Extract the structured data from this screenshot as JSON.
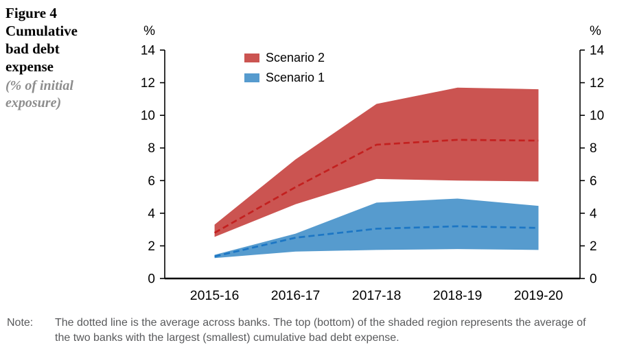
{
  "figure": {
    "label": "Figure 4"
  },
  "note": {
    "label": "Note:",
    "text": "The dotted line is the average across banks. The top (bottom) of the shaded region represents the average of the two banks with the largest (smallest) cumulative bad debt expense."
  },
  "chart_data": {
    "type": "area",
    "title": "Cumulative bad debt expense",
    "subtitle": "(% of initial exposure)",
    "categories": [
      "2015-16",
      "2016-17",
      "2017-18",
      "2018-19",
      "2019-20"
    ],
    "yaxis_unit": "%",
    "ylim": [
      0,
      14
    ],
    "ytick_step": 2,
    "grid": false,
    "legend_position": "top-inside",
    "series": [
      {
        "name": "Scenario 2",
        "band_color": "#cb5451",
        "line_color": "#c3201f",
        "avg": [
          2.8,
          5.6,
          8.2,
          8.5,
          8.45
        ],
        "upper": [
          3.3,
          7.3,
          10.7,
          11.7,
          11.6
        ],
        "lower": [
          2.55,
          4.55,
          6.1,
          6.0,
          5.95
        ]
      },
      {
        "name": "Scenario 1",
        "band_color": "#569bce",
        "line_color": "#1c76c4",
        "avg": [
          1.35,
          2.5,
          3.05,
          3.2,
          3.1
        ],
        "upper": [
          1.45,
          2.75,
          4.65,
          4.9,
          4.45
        ],
        "lower": [
          1.25,
          1.65,
          1.75,
          1.8,
          1.75
        ]
      }
    ]
  }
}
